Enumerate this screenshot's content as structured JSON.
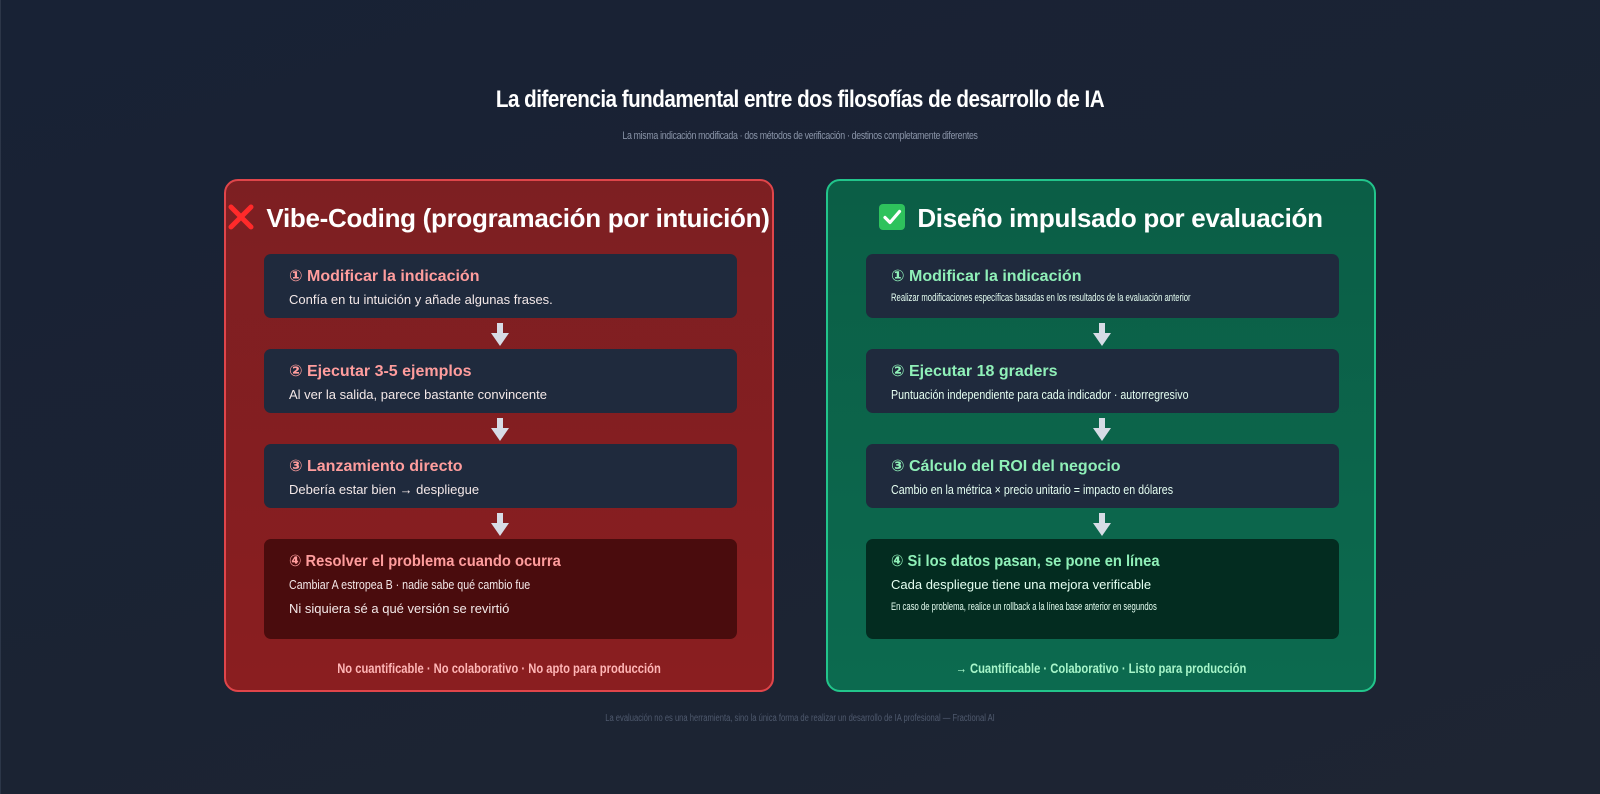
{
  "header": {
    "title": "La diferencia fundamental entre dos filosofías de desarrollo de IA",
    "subtitle": "La misma indicación modificada · dos métodos de verificación · destinos completamente diferentes"
  },
  "left_panel": {
    "title": "Vibe-Coding (programación por intuición)",
    "icon": "cross-mark-icon",
    "accent_color": "#e0454a",
    "steps": [
      {
        "title": "① Modificar la indicación",
        "desc": "Confía en tu intuición y añade algunas frases."
      },
      {
        "title": "② Ejecutar 3-5 ejemplos",
        "desc": "Al ver la salida, parece bastante convincente"
      },
      {
        "title": "③ Lanzamiento directo",
        "desc": "Debería estar bien → despliegue"
      },
      {
        "title": "④ Resolver el problema cuando ocurra",
        "desc": "Cambiar A estropea B · nadie sabe qué cambio fue",
        "desc2": "Ni siquiera sé a qué versión se revirtió"
      }
    ],
    "footer": "No cuantificable · No colaborativo · No apto para producción"
  },
  "right_panel": {
    "title": "Diseño impulsado por evaluación",
    "icon": "check-mark-icon",
    "accent_color": "#22c58b",
    "steps": [
      {
        "title": "① Modificar la indicación",
        "desc": "Realizar modificaciones específicas basadas en los resultados de la evaluación anterior"
      },
      {
        "title": "② Ejecutar 18 graders",
        "desc": "Puntuación independiente para cada indicador · autorregresivo"
      },
      {
        "title": "③ Cálculo del ROI del negocio",
        "desc": "Cambio en la métrica × precio unitario = impacto en dólares"
      },
      {
        "title": "④ Si los datos pasan, se pone en línea",
        "desc": "Cada despliegue tiene una mejora verificable",
        "desc2": "En caso de problema, realice un rollback a la línea base anterior en segundos"
      }
    ],
    "footer": "→ Cuantificable · Colaborativo · Listo para producción"
  },
  "footer": {
    "quote": "La evaluación no es una herramienta, sino la única forma de realizar un desarrollo de IA profesional — Fractional AI"
  }
}
